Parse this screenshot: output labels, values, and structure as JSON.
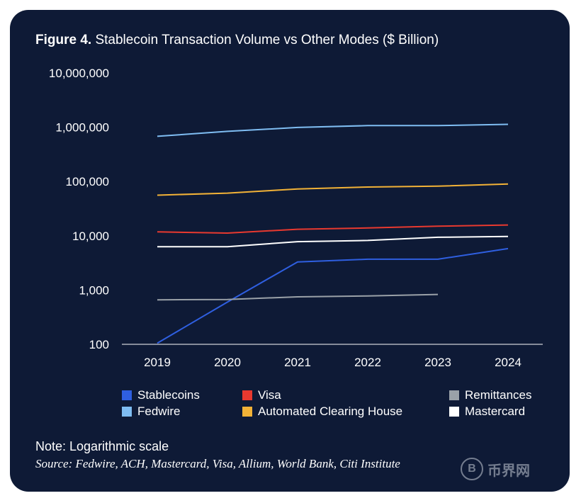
{
  "title": {
    "figure_label": "Figure 4.",
    "text": "Stablecoin Transaction Volume vs Other Modes ($ Billion)"
  },
  "chart_data": {
    "type": "line",
    "title": "Figure 4. Stablecoin Transaction Volume vs Other Modes ($ Billion)",
    "y_scale": "log",
    "ylim": [
      100,
      10000000
    ],
    "y_ticks": [
      100,
      1000,
      10000,
      100000,
      1000000,
      10000000
    ],
    "y_tick_labels": [
      "100",
      "1,000",
      "10,000",
      "100,000",
      "1,000,000",
      "10,000,000"
    ],
    "x": [
      2019,
      2020,
      2021,
      2022,
      2023,
      2024
    ],
    "x_tick_labels": [
      "2019",
      "2020",
      "2021",
      "2022",
      "2023",
      "2024"
    ],
    "grid": false,
    "legend_position": "bottom",
    "series": [
      {
        "name": "Stablecoins",
        "color": "#2f5fe0",
        "values": [
          105,
          600,
          3300,
          3700,
          3700,
          5800
        ]
      },
      {
        "name": "Fedwire",
        "color": "#7fbdf2",
        "values": [
          680000,
          840000,
          990000,
          1070000,
          1070000,
          1130000
        ]
      },
      {
        "name": "Visa",
        "color": "#e8392f",
        "values": [
          11800,
          11200,
          13200,
          13900,
          15000,
          15800
        ]
      },
      {
        "name": "Automated Clearing House",
        "color": "#f2b237",
        "values": [
          56000,
          61000,
          73000,
          79000,
          82000,
          90000
        ]
      },
      {
        "name": "Remittances",
        "color": "#9aa1a8",
        "values": [
          660,
          670,
          750,
          780,
          830,
          null
        ]
      },
      {
        "name": "Mastercard",
        "color": "#ffffff",
        "values": [
          6300,
          6300,
          7800,
          8200,
          9400,
          9700
        ]
      }
    ]
  },
  "legend": [
    {
      "label": "Stablecoins",
      "color": "#2f5fe0"
    },
    {
      "label": "Visa",
      "color": "#e8392f"
    },
    {
      "label": "Remittances",
      "color": "#9aa1a8"
    },
    {
      "label": "Fedwire",
      "color": "#7fbdf2"
    },
    {
      "label": "Automated Clearing House",
      "color": "#f2b237"
    },
    {
      "label": "Mastercard",
      "color": "#ffffff"
    }
  ],
  "note": "Note: Logarithmic scale",
  "source": "Source: Fedwire, ACH, Mastercard, Visa, Allium, World Bank, Citi Institute",
  "watermark": {
    "symbol": "B",
    "text": "币界网"
  }
}
